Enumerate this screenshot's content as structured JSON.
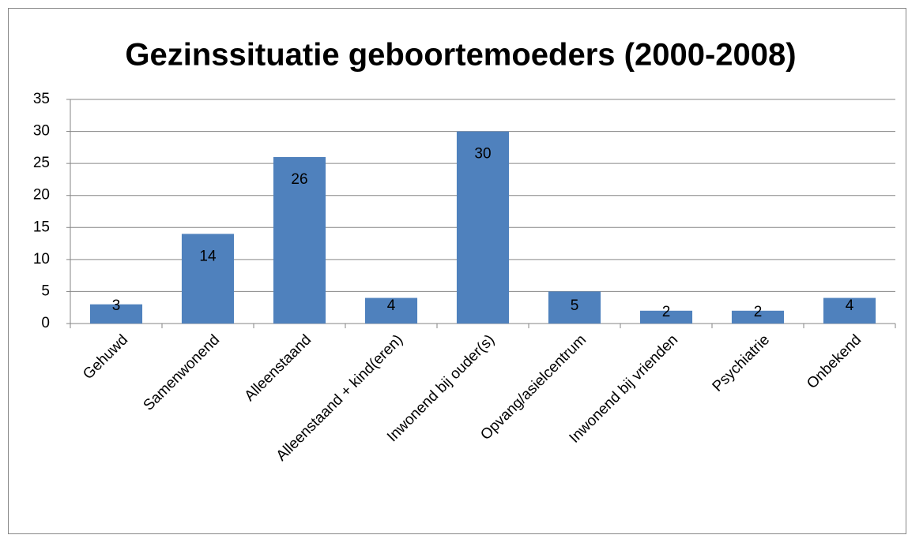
{
  "chart_data": {
    "type": "bar",
    "title": "Gezinssituatie geboortemoeders (2000-2008)",
    "categories": [
      "Gehuwd",
      "Samenwonend",
      "Alleenstaand",
      "Alleenstaand + kind(eren)",
      "Inwonend bij ouder(s)",
      "Opvang/asielcentrum",
      "Inwonend bij vrienden",
      "Psychiatrie",
      "Onbekend"
    ],
    "values": [
      3,
      14,
      26,
      4,
      30,
      5,
      2,
      2,
      4
    ],
    "color": "#4f81bd",
    "ylim": [
      0,
      35
    ],
    "yticks": [
      0,
      5,
      10,
      15,
      20,
      25,
      30,
      35
    ],
    "grid": true
  }
}
